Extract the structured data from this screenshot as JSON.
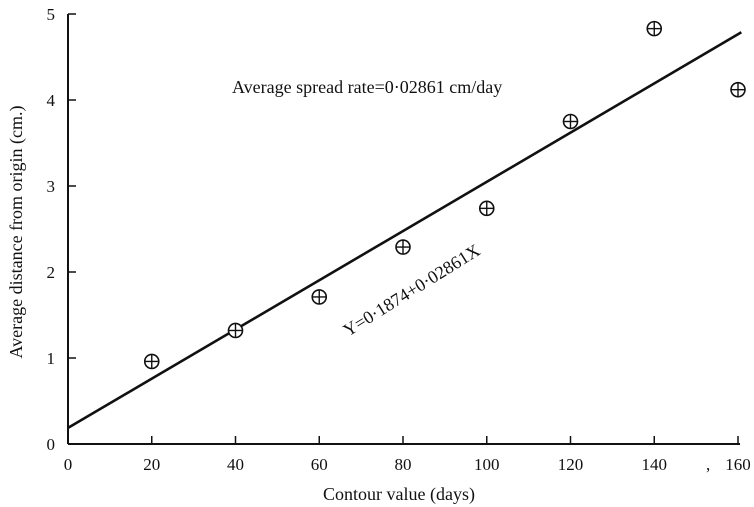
{
  "chart_data": {
    "type": "scatter",
    "title": "",
    "xlabel": "Contour value (days)",
    "ylabel": "Average distance from origin (cm.)",
    "xlim": [
      0,
      160
    ],
    "ylim": [
      0,
      5
    ],
    "xticks": [
      "0",
      "20",
      "40",
      "60",
      "80",
      "100",
      "120",
      "140",
      "160"
    ],
    "yticks": [
      "0",
      "1",
      "2",
      "3",
      "4",
      "5"
    ],
    "grid": false,
    "x": [
      20,
      40,
      60,
      80,
      100,
      120,
      140,
      160
    ],
    "y": [
      0.96,
      1.32,
      1.71,
      2.29,
      2.74,
      3.75,
      4.83,
      4.12
    ],
    "fit_line": {
      "intercept": 0.1874,
      "slope": 0.02861,
      "equation": "Y=0·1874+0·02861X"
    },
    "annotation": "Average spread rate=0·02861 cm/day",
    "marker": "circled-plus",
    "stray_mark": ","
  },
  "colors": {
    "ink": "#111111",
    "background": "#ffffff"
  }
}
